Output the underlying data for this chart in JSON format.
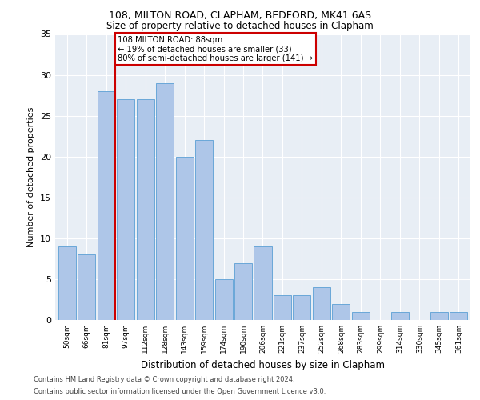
{
  "title_line1": "108, MILTON ROAD, CLAPHAM, BEDFORD, MK41 6AS",
  "title_line2": "Size of property relative to detached houses in Clapham",
  "xlabel": "Distribution of detached houses by size in Clapham",
  "ylabel": "Number of detached properties",
  "categories": [
    "50sqm",
    "66sqm",
    "81sqm",
    "97sqm",
    "112sqm",
    "128sqm",
    "143sqm",
    "159sqm",
    "174sqm",
    "190sqm",
    "206sqm",
    "221sqm",
    "237sqm",
    "252sqm",
    "268sqm",
    "283sqm",
    "299sqm",
    "314sqm",
    "330sqm",
    "345sqm",
    "361sqm"
  ],
  "values": [
    9,
    8,
    28,
    27,
    27,
    29,
    20,
    22,
    5,
    7,
    9,
    3,
    3,
    4,
    2,
    1,
    0,
    1,
    0,
    1,
    1
  ],
  "bar_color": "#aec6e8",
  "bar_edge_color": "#5a9fd4",
  "red_line_index": 2,
  "red_line_color": "#cc0000",
  "annotation_line1": "108 MILTON ROAD: 88sqm",
  "annotation_line2": "← 19% of detached houses are smaller (33)",
  "annotation_line3": "80% of semi-detached houses are larger (141) →",
  "annotation_box_color": "#cc0000",
  "ylim": [
    0,
    35
  ],
  "yticks": [
    0,
    5,
    10,
    15,
    20,
    25,
    30,
    35
  ],
  "bg_color": "#e8eef5",
  "footer_line1": "Contains HM Land Registry data © Crown copyright and database right 2024.",
  "footer_line2": "Contains public sector information licensed under the Open Government Licence v3.0."
}
